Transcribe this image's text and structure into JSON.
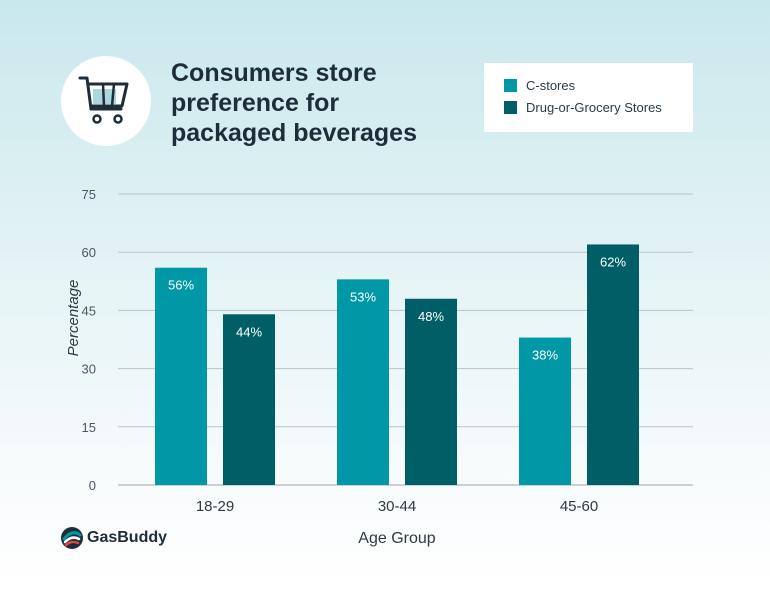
{
  "colors": {
    "c_stores": "#0097a7",
    "grocery": "#005f66"
  },
  "icons": {
    "header": "shopping-cart-icon",
    "logo": "gasbuddy-logo-icon"
  },
  "logo": {
    "text": "GasBuddy"
  },
  "chart_data": {
    "type": "bar",
    "title": "Consumers store\npreference for\npackaged beverages",
    "xlabel": "Age Group",
    "ylabel": "Percentage",
    "categories": [
      "18-29",
      "30-44",
      "45-60"
    ],
    "series": [
      {
        "name": "C-stores",
        "values": [
          56,
          53,
          38
        ],
        "labels": [
          "56%",
          "53%",
          "38%"
        ]
      },
      {
        "name": "Drug-or-Grocery Stores",
        "values": [
          44,
          48,
          62
        ],
        "labels": [
          "44%",
          "48%",
          "62%"
        ]
      }
    ],
    "ylim": [
      0,
      75
    ],
    "yticks": [
      0,
      15,
      30,
      45,
      60,
      75
    ],
    "grid": true,
    "legend": "top-right"
  }
}
